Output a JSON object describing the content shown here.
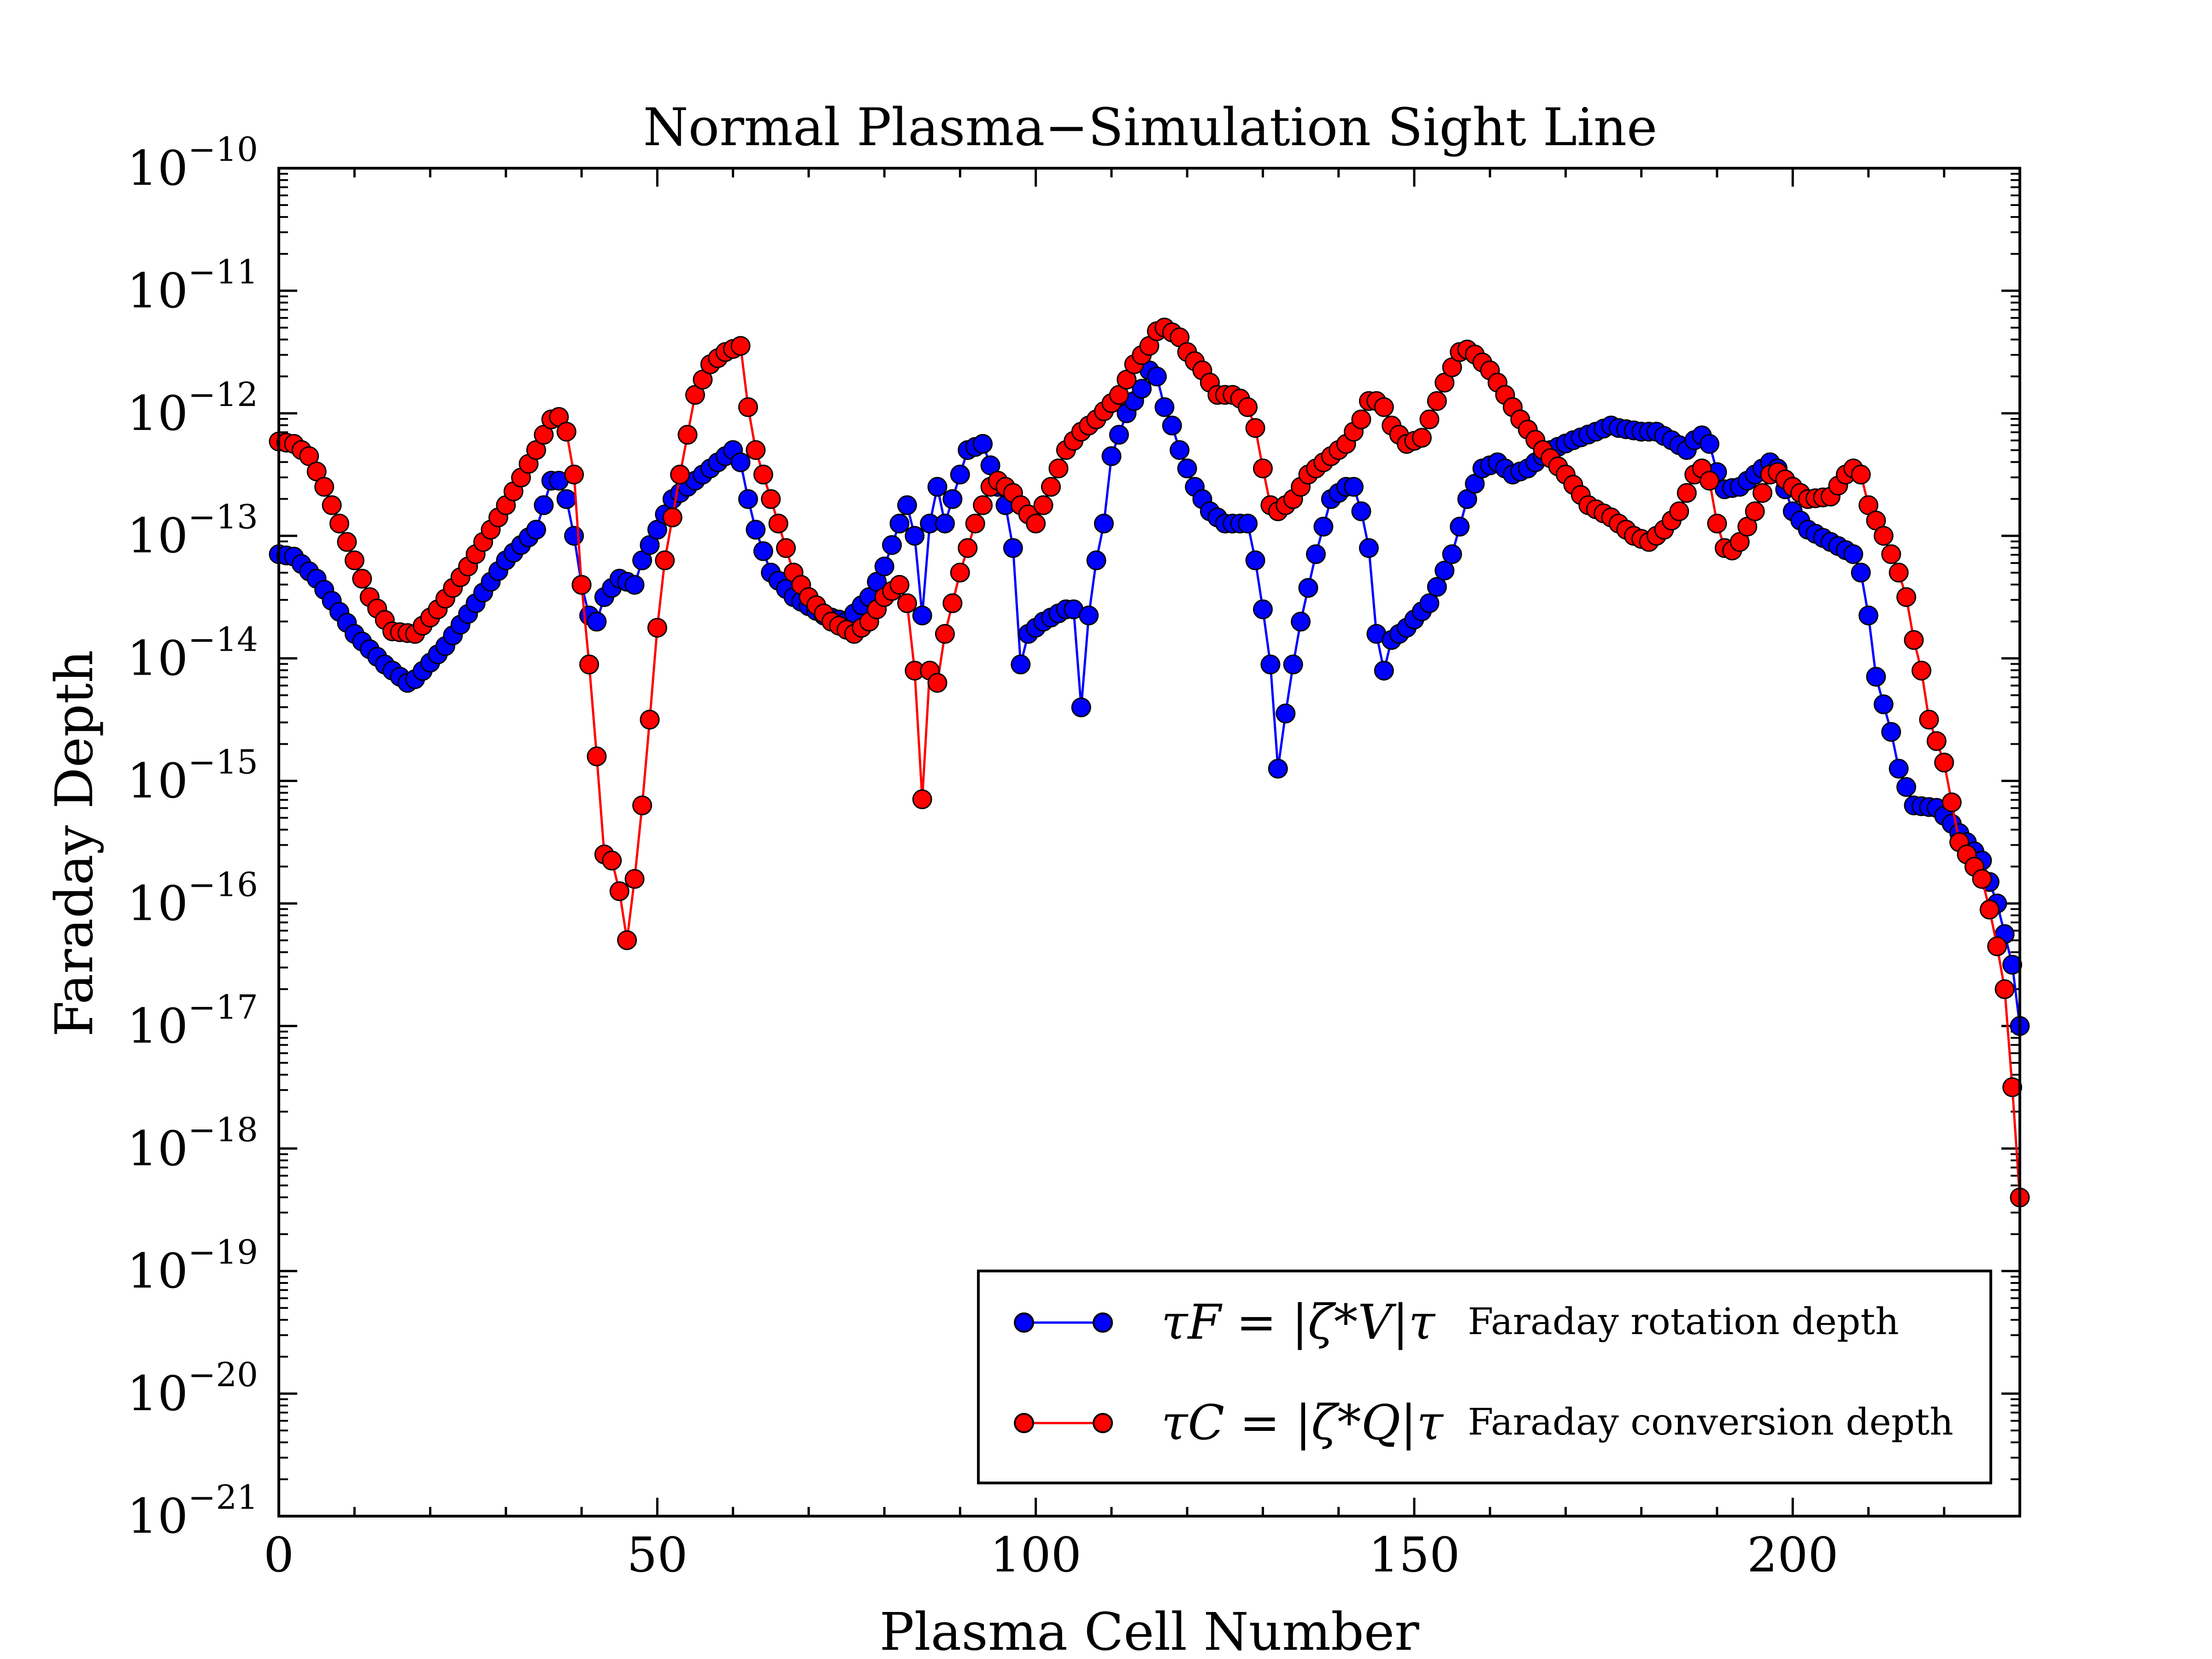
{
  "chart_data": {
    "type": "line",
    "title": "Normal Plasma−Simulation Sight Line",
    "xlabel": "Plasma Cell Number",
    "ylabel": "Faraday Depth",
    "xlim": [
      0,
      230
    ],
    "ylim_log10": [
      -21,
      -10
    ],
    "x_ticks": [
      {
        "value": 0,
        "label": "0"
      },
      {
        "value": 50,
        "label": "50"
      },
      {
        "value": 100,
        "label": "100"
      },
      {
        "value": 150,
        "label": "150"
      },
      {
        "value": 200,
        "label": "200"
      }
    ],
    "y_ticks": [
      {
        "exp": -10,
        "base": "10",
        "sup": "−10"
      },
      {
        "exp": -11,
        "base": "10",
        "sup": "−11"
      },
      {
        "exp": -12,
        "base": "10",
        "sup": "−12"
      },
      {
        "exp": -13,
        "base": "10",
        "sup": "−13"
      },
      {
        "exp": -14,
        "base": "10",
        "sup": "−14"
      },
      {
        "exp": -15,
        "base": "10",
        "sup": "−15"
      },
      {
        "exp": -16,
        "base": "10",
        "sup": "−16"
      },
      {
        "exp": -17,
        "base": "10",
        "sup": "−17"
      },
      {
        "exp": -18,
        "base": "10",
        "sup": "−18"
      },
      {
        "exp": -19,
        "base": "10",
        "sup": "−19"
      },
      {
        "exp": -20,
        "base": "10",
        "sup": "−20"
      },
      {
        "exp": -21,
        "base": "10",
        "sup": "−21"
      }
    ],
    "x_values": {
      "start": 0,
      "end": 230,
      "step": 1
    },
    "series": [
      {
        "name": "tau_F",
        "color": "#0000ff",
        "legend_math": "τF = |ζ*V|τ",
        "legend_desc": "Faraday rotation depth",
        "knots_log10": [
          [
            0,
            -13.15
          ],
          [
            2,
            -13.17
          ],
          [
            5,
            -13.35
          ],
          [
            10,
            -13.8
          ],
          [
            14,
            -14.05
          ],
          [
            17,
            -14.2
          ],
          [
            18,
            -14.17
          ],
          [
            22,
            -13.9
          ],
          [
            26,
            -13.55
          ],
          [
            30,
            -13.2
          ],
          [
            34,
            -12.95
          ],
          [
            36,
            -12.55
          ],
          [
            37,
            -12.55
          ],
          [
            38,
            -12.7
          ],
          [
            39,
            -13.0
          ],
          [
            40,
            -13.4
          ],
          [
            41,
            -13.65
          ],
          [
            42,
            -13.7
          ],
          [
            43,
            -13.5
          ],
          [
            45,
            -13.35
          ],
          [
            47,
            -13.4
          ],
          [
            48,
            -13.2
          ],
          [
            50,
            -12.95
          ],
          [
            52,
            -12.7
          ],
          [
            56,
            -12.5
          ],
          [
            60,
            -12.3
          ],
          [
            61,
            -12.4
          ],
          [
            62,
            -12.7
          ],
          [
            63,
            -12.95
          ],
          [
            65,
            -13.3
          ],
          [
            68,
            -13.5
          ],
          [
            72,
            -13.65
          ],
          [
            75,
            -13.7
          ],
          [
            78,
            -13.5
          ],
          [
            80,
            -13.25
          ],
          [
            82,
            -12.9
          ],
          [
            83,
            -12.75
          ],
          [
            84,
            -13.0
          ],
          [
            85,
            -13.65
          ],
          [
            86,
            -12.9
          ],
          [
            87,
            -12.6
          ],
          [
            88,
            -12.9
          ],
          [
            90,
            -12.5
          ],
          [
            91,
            -12.3
          ],
          [
            93,
            -12.25
          ],
          [
            95,
            -12.6
          ],
          [
            96,
            -12.75
          ],
          [
            97,
            -13.1
          ],
          [
            98,
            -14.05
          ],
          [
            99,
            -13.8
          ],
          [
            101,
            -13.7
          ],
          [
            104,
            -13.6
          ],
          [
            105,
            -13.6
          ],
          [
            106,
            -14.4
          ],
          [
            107,
            -13.65
          ],
          [
            108,
            -13.2
          ],
          [
            109,
            -12.9
          ],
          [
            110,
            -12.35
          ],
          [
            112,
            -12.0
          ],
          [
            114,
            -11.8
          ],
          [
            115,
            -11.65
          ],
          [
            116,
            -11.7
          ],
          [
            117,
            -11.95
          ],
          [
            118,
            -12.1
          ],
          [
            119,
            -12.3
          ],
          [
            121,
            -12.6
          ],
          [
            123,
            -12.8
          ],
          [
            125,
            -12.9
          ],
          [
            127,
            -12.9
          ],
          [
            128,
            -12.9
          ],
          [
            129,
            -13.2
          ],
          [
            130,
            -13.6
          ],
          [
            131,
            -14.05
          ],
          [
            132,
            -14.9
          ],
          [
            133,
            -14.45
          ],
          [
            134,
            -14.05
          ],
          [
            135,
            -13.7
          ],
          [
            137,
            -13.15
          ],
          [
            139,
            -12.7
          ],
          [
            141,
            -12.6
          ],
          [
            142,
            -12.6
          ],
          [
            143,
            -12.8
          ],
          [
            144,
            -13.1
          ],
          [
            145,
            -13.8
          ],
          [
            146,
            -14.1
          ],
          [
            147,
            -13.85
          ],
          [
            149,
            -13.75
          ],
          [
            152,
            -13.55
          ],
          [
            155,
            -13.15
          ],
          [
            157,
            -12.7
          ],
          [
            159,
            -12.45
          ],
          [
            161,
            -12.4
          ],
          [
            163,
            -12.5
          ],
          [
            165,
            -12.45
          ],
          [
            168,
            -12.3
          ],
          [
            171,
            -12.22
          ],
          [
            174,
            -12.15
          ],
          [
            176,
            -12.1
          ],
          [
            177,
            -12.12
          ],
          [
            180,
            -12.15
          ],
          [
            182,
            -12.15
          ],
          [
            184,
            -12.22
          ],
          [
            186,
            -12.3
          ],
          [
            187,
            -12.22
          ],
          [
            188,
            -12.18
          ],
          [
            189,
            -12.25
          ],
          [
            190,
            -12.48
          ],
          [
            191,
            -12.62
          ],
          [
            193,
            -12.6
          ],
          [
            195,
            -12.5
          ],
          [
            197,
            -12.4
          ],
          [
            198,
            -12.45
          ],
          [
            199,
            -12.62
          ],
          [
            200,
            -12.8
          ],
          [
            202,
            -12.95
          ],
          [
            205,
            -13.05
          ],
          [
            208,
            -13.15
          ],
          [
            209,
            -13.3
          ],
          [
            210,
            -13.65
          ],
          [
            211,
            -14.15
          ],
          [
            213,
            -14.6
          ],
          [
            214,
            -14.9
          ],
          [
            215,
            -15.05
          ],
          [
            216,
            -15.2
          ],
          [
            219,
            -15.22
          ],
          [
            221,
            -15.35
          ],
          [
            223,
            -15.5
          ],
          [
            225,
            -15.65
          ],
          [
            227,
            -16.0
          ],
          [
            229,
            -16.5
          ],
          [
            230,
            -17.0
          ]
        ]
      },
      {
        "name": "tau_C",
        "color": "#ff0000",
        "legend_math": "τC = |ζ*Q|τ",
        "legend_desc": "Faraday conversion depth",
        "knots_log10": [
          [
            0,
            -12.23
          ],
          [
            2,
            -12.25
          ],
          [
            4,
            -12.35
          ],
          [
            6,
            -12.6
          ],
          [
            9,
            -13.05
          ],
          [
            12,
            -13.5
          ],
          [
            15,
            -13.78
          ],
          [
            18,
            -13.8
          ],
          [
            21,
            -13.6
          ],
          [
            25,
            -13.25
          ],
          [
            30,
            -12.75
          ],
          [
            34,
            -12.3
          ],
          [
            36,
            -12.05
          ],
          [
            37,
            -12.03
          ],
          [
            38,
            -12.15
          ],
          [
            39,
            -12.5
          ],
          [
            40,
            -13.4
          ],
          [
            41,
            -14.05
          ],
          [
            42,
            -14.8
          ],
          [
            42.5,
            -15.85
          ],
          [
            43,
            -15.6
          ],
          [
            44,
            -15.65
          ],
          [
            45,
            -15.9
          ],
          [
            46,
            -16.3
          ],
          [
            47,
            -15.8
          ],
          [
            48,
            -15.2
          ],
          [
            49,
            -14.5
          ],
          [
            50,
            -13.75
          ],
          [
            51,
            -13.2
          ],
          [
            53,
            -12.5
          ],
          [
            55,
            -11.85
          ],
          [
            57,
            -11.6
          ],
          [
            59,
            -11.5
          ],
          [
            61,
            -11.45
          ],
          [
            62,
            -11.95
          ],
          [
            63,
            -12.3
          ],
          [
            65,
            -12.7
          ],
          [
            68,
            -13.3
          ],
          [
            70,
            -13.5
          ],
          [
            73,
            -13.7
          ],
          [
            76,
            -13.8
          ],
          [
            78,
            -13.7
          ],
          [
            80,
            -13.5
          ],
          [
            82,
            -13.4
          ],
          [
            83,
            -13.55
          ],
          [
            84,
            -14.1
          ],
          [
            85,
            -15.15
          ],
          [
            86,
            -14.1
          ],
          [
            87,
            -14.2
          ],
          [
            88,
            -13.8
          ],
          [
            90,
            -13.3
          ],
          [
            92,
            -12.9
          ],
          [
            94,
            -12.6
          ],
          [
            95,
            -12.55
          ],
          [
            97,
            -12.65
          ],
          [
            98,
            -12.75
          ],
          [
            100,
            -12.9
          ],
          [
            102,
            -12.6
          ],
          [
            104,
            -12.3
          ],
          [
            106,
            -12.15
          ],
          [
            108,
            -12.05
          ],
          [
            111,
            -11.85
          ],
          [
            113,
            -11.6
          ],
          [
            115,
            -11.45
          ],
          [
            116,
            -11.33
          ],
          [
            117,
            -11.3
          ],
          [
            119,
            -11.38
          ],
          [
            120,
            -11.5
          ],
          [
            122,
            -11.65
          ],
          [
            124,
            -11.85
          ],
          [
            126,
            -11.85
          ],
          [
            127,
            -11.88
          ],
          [
            128,
            -11.95
          ],
          [
            129,
            -12.12
          ],
          [
            130,
            -12.45
          ],
          [
            131,
            -12.75
          ],
          [
            132,
            -12.8
          ],
          [
            134,
            -12.7
          ],
          [
            136,
            -12.5
          ],
          [
            139,
            -12.35
          ],
          [
            141,
            -12.25
          ],
          [
            143,
            -12.05
          ],
          [
            144,
            -11.9
          ],
          [
            145,
            -11.9
          ],
          [
            146,
            -11.95
          ],
          [
            147,
            -12.1
          ],
          [
            149,
            -12.25
          ],
          [
            151,
            -12.2
          ],
          [
            152,
            -12.05
          ],
          [
            154,
            -11.75
          ],
          [
            156,
            -11.5
          ],
          [
            157,
            -11.48
          ],
          [
            158,
            -11.52
          ],
          [
            160,
            -11.65
          ],
          [
            162,
            -11.85
          ],
          [
            164,
            -12.05
          ],
          [
            167,
            -12.3
          ],
          [
            170,
            -12.5
          ],
          [
            173,
            -12.75
          ],
          [
            176,
            -12.85
          ],
          [
            179,
            -13.0
          ],
          [
            181,
            -13.05
          ],
          [
            183,
            -12.95
          ],
          [
            185,
            -12.8
          ],
          [
            187,
            -12.5
          ],
          [
            188,
            -12.45
          ],
          [
            189,
            -12.55
          ],
          [
            190,
            -12.9
          ],
          [
            191,
            -13.1
          ],
          [
            192,
            -13.12
          ],
          [
            193,
            -13.05
          ],
          [
            195,
            -12.8
          ],
          [
            197,
            -12.5
          ],
          [
            198,
            -12.48
          ],
          [
            200,
            -12.6
          ],
          [
            202,
            -12.7
          ],
          [
            205,
            -12.68
          ],
          [
            207,
            -12.5
          ],
          [
            208,
            -12.45
          ],
          [
            209,
            -12.5
          ],
          [
            210,
            -12.75
          ],
          [
            212,
            -13.0
          ],
          [
            214,
            -13.3
          ],
          [
            215,
            -13.5
          ],
          [
            216,
            -13.85
          ],
          [
            217,
            -14.1
          ],
          [
            218,
            -14.5
          ],
          [
            220,
            -14.85
          ],
          [
            222,
            -15.5
          ],
          [
            223,
            -15.6
          ],
          [
            225,
            -15.8
          ],
          [
            226,
            -16.05
          ],
          [
            227,
            -16.35
          ],
          [
            228,
            -16.7
          ],
          [
            229,
            -17.5
          ],
          [
            230,
            -18.4
          ]
        ]
      }
    ],
    "legend_position": "lower-right"
  }
}
